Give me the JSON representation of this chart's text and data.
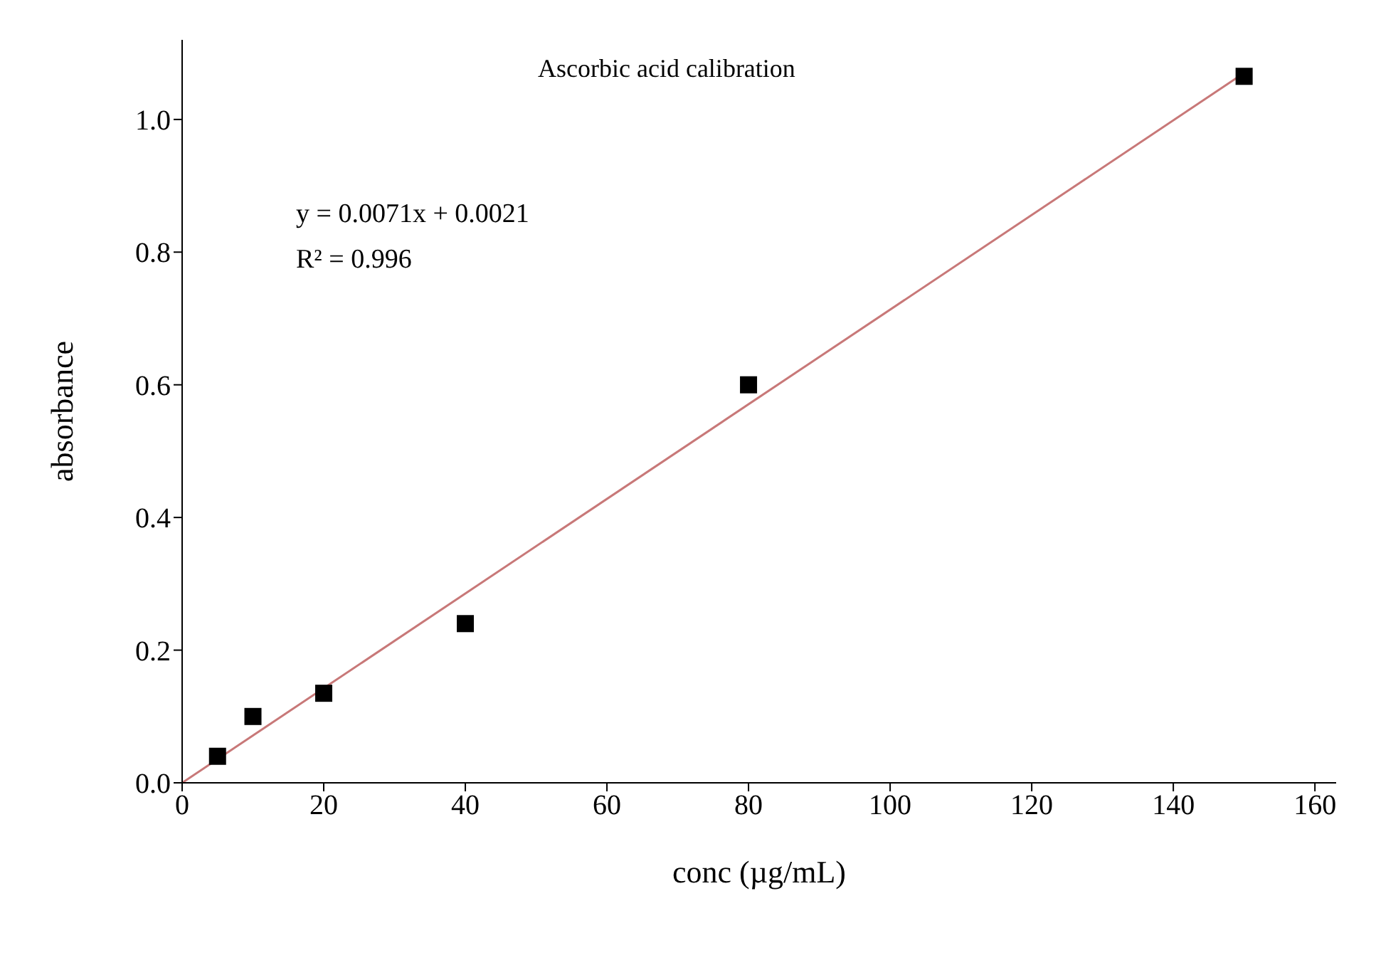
{
  "chart_data": {
    "type": "scatter",
    "title": "Ascorbic acid calibration",
    "xlabel": "conc (µg/mL)",
    "ylabel": "absorbance",
    "annotations": [
      "y = 0.0071x + 0.0021",
      "R² = 0.996"
    ],
    "xlim": [
      0,
      163
    ],
    "xticks": [
      0,
      20,
      40,
      60,
      80,
      100,
      120,
      140,
      160
    ],
    "ylim": [
      0,
      1.12
    ],
    "yticks": [
      {
        "value": 0,
        "label": "0.0"
      },
      {
        "value": 0.2,
        "label": "0.2"
      },
      {
        "value": 0.4,
        "label": "0.4"
      },
      {
        "value": 0.6,
        "label": "0.6"
      },
      {
        "value": 0.8,
        "label": "0.8"
      },
      {
        "value": 1.0,
        "label": "1.0"
      }
    ],
    "grid": false,
    "legend": false,
    "series": [
      {
        "color": "#000000",
        "marker": "square",
        "x": [
          5,
          10,
          20,
          40,
          80,
          150
        ],
        "values": [
          0.04,
          0.1,
          0.135,
          0.24,
          0.6,
          1.065
        ]
      },
      {
        "type": "line",
        "color": "#c87878",
        "marker": "none",
        "line_style": "solid",
        "x": [
          0,
          150
        ],
        "values": [
          0.0,
          1.07
        ]
      }
    ]
  }
}
